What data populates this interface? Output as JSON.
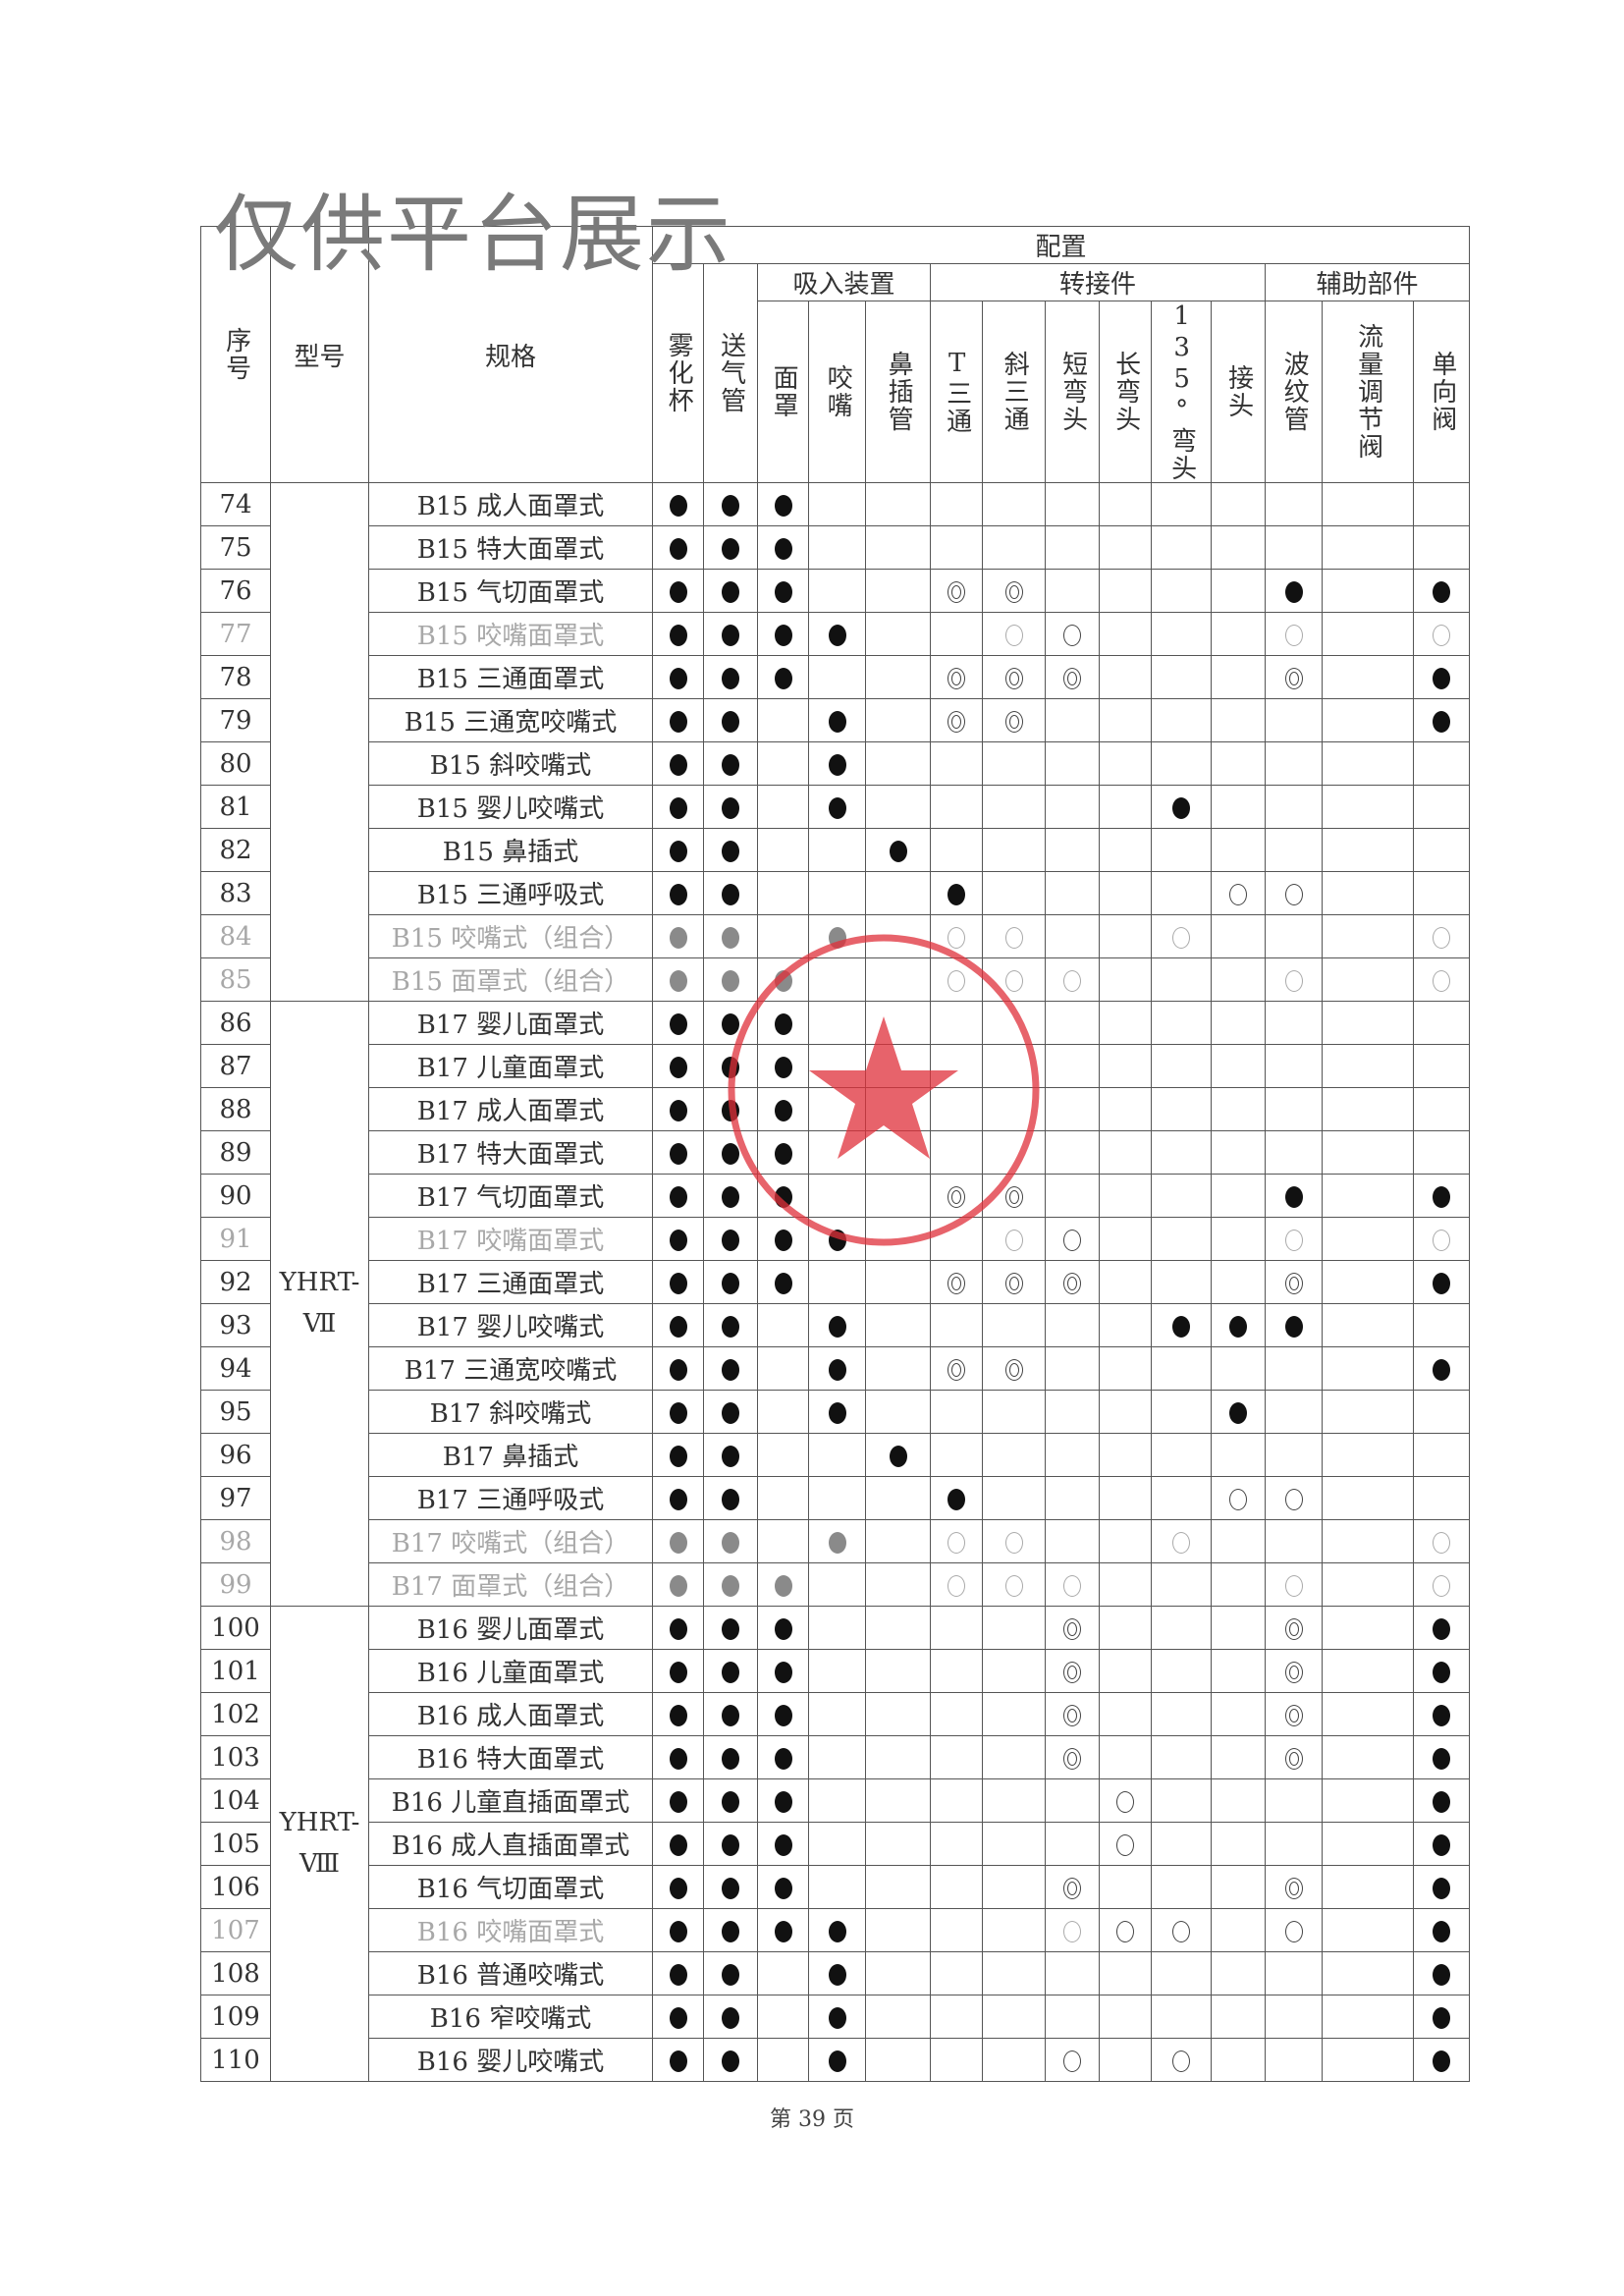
{
  "watermark": "仅供平台展示",
  "header": {
    "seq": "序号",
    "model": "型号",
    "spec": "规格",
    "config": "配置",
    "nebulizer_cup": "雾化杯",
    "air_tube": "送气管",
    "groups": {
      "inhalation": "吸入装置",
      "adapter": "转接件",
      "auxiliary": "辅助部件"
    },
    "columns": [
      "面罩",
      "咬嘴",
      "鼻插管",
      "T三通",
      "斜三通",
      "短弯头",
      "长弯头",
      "135°弯头",
      "接头",
      "波纹管",
      "流量调节阀",
      "单向阀"
    ]
  },
  "legend_symbols": {
    "filled": "●",
    "double": "◎",
    "open": "○"
  },
  "model_groups": [
    {
      "model": "",
      "rows": 12
    },
    {
      "model": "YHRT-Ⅶ",
      "rows": 14
    },
    {
      "model": "YHRT-Ⅷ",
      "rows": 11
    }
  ],
  "rows": [
    {
      "no": "74",
      "spec": "B15 成人面罩式",
      "cells": [
        "filled",
        "filled",
        "filled",
        "",
        "",
        "",
        "",
        "",
        "",
        "",
        "",
        "",
        "",
        ""
      ]
    },
    {
      "no": "75",
      "spec": "B15 特大面罩式",
      "cells": [
        "filled",
        "filled",
        "filled",
        "",
        "",
        "",
        "",
        "",
        "",
        "",
        "",
        "",
        "",
        ""
      ]
    },
    {
      "no": "76",
      "spec": "B15 气切面罩式",
      "cells": [
        "filled",
        "filled",
        "filled",
        "",
        "",
        "double",
        "double",
        "",
        "",
        "",
        "",
        "filled",
        "",
        "filled"
      ]
    },
    {
      "no": "77",
      "spec": "B15 咬嘴面罩式",
      "faded": true,
      "cells": [
        "filled",
        "filled",
        "filled",
        "filled",
        "",
        "",
        "open-light",
        "open",
        "",
        "",
        "",
        "open-light",
        "",
        "open-light"
      ]
    },
    {
      "no": "78",
      "spec": "B15 三通面罩式",
      "cells": [
        "filled",
        "filled",
        "filled",
        "",
        "",
        "double",
        "double",
        "double",
        "",
        "",
        "",
        "double",
        "",
        "filled"
      ]
    },
    {
      "no": "79",
      "spec": "B15 三通宽咬嘴式",
      "cells": [
        "filled",
        "filled",
        "",
        "filled",
        "",
        "double",
        "double",
        "",
        "",
        "",
        "",
        "",
        "",
        "filled"
      ]
    },
    {
      "no": "80",
      "spec": "B15 斜咬嘴式",
      "cells": [
        "filled",
        "filled",
        "",
        "filled",
        "",
        "",
        "",
        "",
        "",
        "",
        "",
        "",
        "",
        ""
      ]
    },
    {
      "no": "81",
      "spec": "B15 婴儿咬嘴式",
      "cells": [
        "filled",
        "filled",
        "",
        "filled",
        "",
        "",
        "",
        "",
        "",
        "filled",
        "",
        "",
        "",
        ""
      ]
    },
    {
      "no": "82",
      "spec": "B15 鼻插式",
      "cells": [
        "filled",
        "filled",
        "",
        "",
        "filled",
        "",
        "",
        "",
        "",
        "",
        "",
        "",
        "",
        ""
      ]
    },
    {
      "no": "83",
      "spec": "B15 三通呼吸式",
      "cells": [
        "filled",
        "filled",
        "",
        "",
        "",
        "filled",
        "",
        "",
        "",
        "",
        "open",
        "open",
        "",
        ""
      ]
    },
    {
      "no": "84",
      "spec": "B15 咬嘴式（组合）",
      "faded": true,
      "cells": [
        "filled-grey",
        "filled-grey",
        "",
        "filled-grey",
        "",
        "open-light",
        "open-light",
        "",
        "",
        "open-light",
        "",
        "",
        "",
        "open-light"
      ]
    },
    {
      "no": "85",
      "spec": "B15 面罩式（组合）",
      "faded": true,
      "cells": [
        "filled-grey",
        "filled-grey",
        "filled-grey",
        "",
        "",
        "open-light",
        "open-light",
        "open-light",
        "",
        "",
        "",
        "open-light",
        "",
        "open-light"
      ]
    },
    {
      "no": "86",
      "spec": "B17 婴儿面罩式",
      "cells": [
        "filled",
        "filled",
        "filled",
        "",
        "",
        "",
        "",
        "",
        "",
        "",
        "",
        "",
        "",
        ""
      ]
    },
    {
      "no": "87",
      "spec": "B17 儿童面罩式",
      "cells": [
        "filled",
        "filled",
        "filled",
        "",
        "",
        "",
        "",
        "",
        "",
        "",
        "",
        "",
        "",
        ""
      ]
    },
    {
      "no": "88",
      "spec": "B17 成人面罩式",
      "cells": [
        "filled",
        "filled",
        "filled",
        "",
        "",
        "",
        "",
        "",
        "",
        "",
        "",
        "",
        "",
        ""
      ]
    },
    {
      "no": "89",
      "spec": "B17 特大面罩式",
      "cells": [
        "filled",
        "filled",
        "filled",
        "",
        "",
        "",
        "",
        "",
        "",
        "",
        "",
        "",
        "",
        ""
      ]
    },
    {
      "no": "90",
      "spec": "B17 气切面罩式",
      "cells": [
        "filled",
        "filled",
        "filled",
        "",
        "",
        "double",
        "double",
        "",
        "",
        "",
        "",
        "filled",
        "",
        "filled"
      ]
    },
    {
      "no": "91",
      "spec": "B17 咬嘴面罩式",
      "faded": true,
      "cells": [
        "filled",
        "filled",
        "filled",
        "filled",
        "",
        "",
        "open-light",
        "open",
        "",
        "",
        "",
        "open-light",
        "",
        "open-light"
      ]
    },
    {
      "no": "92",
      "spec": "B17 三通面罩式",
      "cells": [
        "filled",
        "filled",
        "filled",
        "",
        "",
        "double",
        "double",
        "double",
        "",
        "",
        "",
        "double",
        "",
        "filled"
      ]
    },
    {
      "no": "93",
      "spec": "B17 婴儿咬嘴式",
      "cells": [
        "filled",
        "filled",
        "",
        "filled",
        "",
        "",
        "",
        "",
        "",
        "filled",
        "filled",
        "filled",
        "",
        ""
      ]
    },
    {
      "no": "94",
      "spec": "B17 三通宽咬嘴式",
      "cells": [
        "filled",
        "filled",
        "",
        "filled",
        "",
        "double",
        "double",
        "",
        "",
        "",
        "",
        "",
        "",
        "filled"
      ]
    },
    {
      "no": "95",
      "spec": "B17 斜咬嘴式",
      "cells": [
        "filled",
        "filled",
        "",
        "filled",
        "",
        "",
        "",
        "",
        "",
        "",
        "filled",
        "",
        "",
        ""
      ]
    },
    {
      "no": "96",
      "spec": "B17 鼻插式",
      "cells": [
        "filled",
        "filled",
        "",
        "",
        "filled",
        "",
        "",
        "",
        "",
        "",
        "",
        "",
        "",
        ""
      ]
    },
    {
      "no": "97",
      "spec": "B17  三通呼吸式",
      "cells": [
        "filled",
        "filled",
        "",
        "",
        "",
        "filled",
        "",
        "",
        "",
        "",
        "open",
        "open",
        "",
        ""
      ]
    },
    {
      "no": "98",
      "spec": "B17 咬嘴式（组合）",
      "faded": true,
      "cells": [
        "filled-grey",
        "filled-grey",
        "",
        "filled-grey",
        "",
        "open-light",
        "open-light",
        "",
        "",
        "open-light",
        "",
        "",
        "",
        "open-light"
      ]
    },
    {
      "no": "99",
      "spec": "B17 面罩式（组合）",
      "faded": true,
      "cells": [
        "filled-grey",
        "filled-grey",
        "filled-grey",
        "",
        "",
        "open-light",
        "open-light",
        "open-light",
        "",
        "",
        "",
        "open-light",
        "",
        "open-light"
      ]
    },
    {
      "no": "100",
      "spec": "B16 婴儿面罩式",
      "cells": [
        "filled",
        "filled",
        "filled",
        "",
        "",
        "",
        "",
        "double",
        "",
        "",
        "",
        "double",
        "",
        "filled"
      ]
    },
    {
      "no": "101",
      "spec": "B16 儿童面罩式",
      "cells": [
        "filled",
        "filled",
        "filled",
        "",
        "",
        "",
        "",
        "double",
        "",
        "",
        "",
        "double",
        "",
        "filled"
      ]
    },
    {
      "no": "102",
      "spec": "B16 成人面罩式",
      "cells": [
        "filled",
        "filled",
        "filled",
        "",
        "",
        "",
        "",
        "double",
        "",
        "",
        "",
        "double",
        "",
        "filled"
      ]
    },
    {
      "no": "103",
      "spec": "B16 特大面罩式",
      "cells": [
        "filled",
        "filled",
        "filled",
        "",
        "",
        "",
        "",
        "double",
        "",
        "",
        "",
        "double",
        "",
        "filled"
      ]
    },
    {
      "no": "104",
      "spec": "B16 儿童直插面罩式",
      "cells": [
        "filled",
        "filled",
        "filled",
        "",
        "",
        "",
        "",
        "",
        "open",
        "",
        "",
        "",
        "",
        "filled"
      ]
    },
    {
      "no": "105",
      "spec": "B16 成人直插面罩式",
      "cells": [
        "filled",
        "filled",
        "filled",
        "",
        "",
        "",
        "",
        "",
        "open",
        "",
        "",
        "",
        "",
        "filled"
      ]
    },
    {
      "no": "106",
      "spec": "B16 气切面罩式",
      "cells": [
        "filled",
        "filled",
        "filled",
        "",
        "",
        "",
        "",
        "double",
        "",
        "",
        "",
        "double",
        "",
        "filled"
      ]
    },
    {
      "no": "107",
      "spec": "B16 咬嘴面罩式",
      "faded": true,
      "cells": [
        "filled",
        "filled",
        "filled",
        "filled",
        "",
        "",
        "",
        "open-light",
        "open",
        "open",
        "",
        "open",
        "",
        "filled"
      ]
    },
    {
      "no": "108",
      "spec": "B16 普通咬嘴式",
      "cells": [
        "filled",
        "filled",
        "",
        "filled",
        "",
        "",
        "",
        "",
        "",
        "",
        "",
        "",
        "",
        "filled"
      ]
    },
    {
      "no": "109",
      "spec": "B16 窄咬嘴式",
      "cells": [
        "filled",
        "filled",
        "",
        "filled",
        "",
        "",
        "",
        "",
        "",
        "",
        "",
        "",
        "",
        "filled"
      ]
    },
    {
      "no": "110",
      "spec": "B16 婴儿咬嘴式",
      "cells": [
        "filled",
        "filled",
        "",
        "filled",
        "",
        "",
        "",
        "open",
        "",
        "open",
        "",
        "",
        "",
        "filled"
      ]
    }
  ],
  "footer": {
    "page_label": "第 39 页"
  },
  "seal": {
    "color": "#e0303a"
  }
}
